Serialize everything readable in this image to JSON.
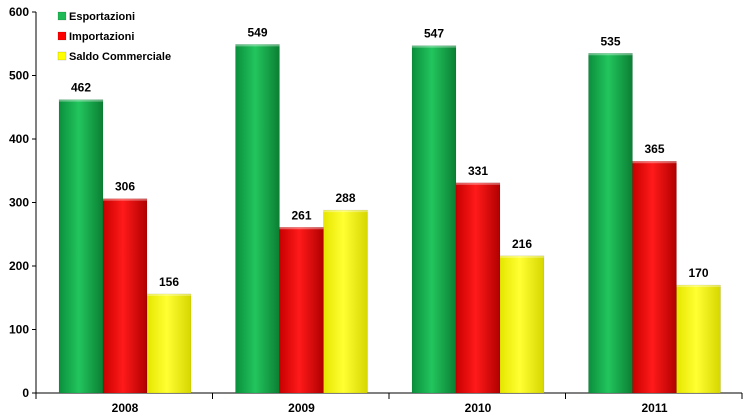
{
  "chart_data": {
    "type": "bar",
    "categories": [
      "2008",
      "2009",
      "2010",
      "2011"
    ],
    "series": [
      {
        "name": "Esportazioni",
        "values": [
          462,
          549,
          547,
          535
        ],
        "color": "#1db954"
      },
      {
        "name": "Importazioni",
        "values": [
          306,
          261,
          331,
          365
        ],
        "color": "#ff0000"
      },
      {
        "name": "Saldo Commerciale",
        "values": [
          156,
          288,
          216,
          170
        ],
        "color": "#ffff00"
      }
    ],
    "ylim": [
      0,
      600
    ],
    "yticks": [
      0,
      100,
      200,
      300,
      400,
      500,
      600
    ],
    "legend_position": "top-left",
    "grid": false
  }
}
